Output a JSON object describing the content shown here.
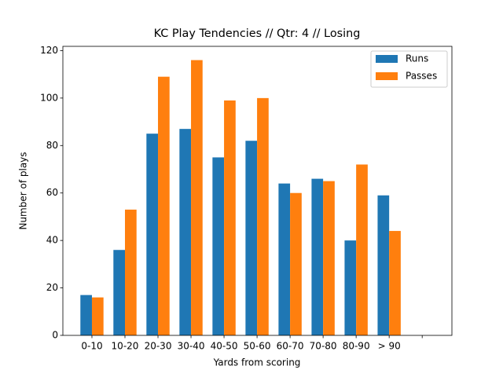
{
  "chart_data": {
    "type": "bar",
    "title": "KC Play Tendencies // Qtr: 4 // Losing",
    "x_label": "Yards from scoring",
    "y_label": "Number of plays",
    "categories": [
      "0-10",
      "10-20",
      "20-30",
      "30-40",
      "40-50",
      "50-60",
      "60-70",
      "70-80",
      "80-90",
      "> 90",
      null
    ],
    "series": [
      {
        "name": "Runs",
        "color": "#1f77b4",
        "values": [
          17,
          36,
          85,
          87,
          75,
          82,
          64,
          66,
          40,
          59,
          null
        ]
      },
      {
        "name": "Passes",
        "color": "#ff7f0e",
        "values": [
          16,
          53,
          109,
          116,
          99,
          100,
          60,
          65,
          72,
          44,
          null
        ]
      }
    ],
    "ylim": [
      0,
      121.8
    ],
    "yticks": [
      0,
      20,
      40,
      60,
      80,
      100,
      120
    ],
    "legend": "upper right"
  }
}
